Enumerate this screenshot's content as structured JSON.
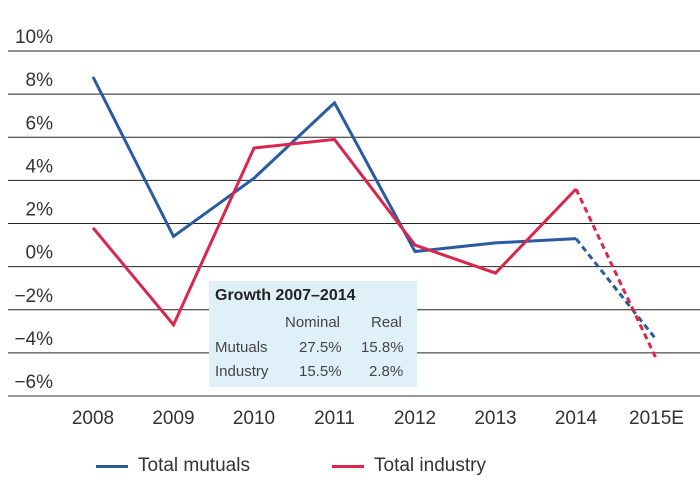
{
  "chart_data": {
    "type": "line",
    "title": "",
    "xlabel": "",
    "ylabel": "",
    "categories": [
      "2008",
      "2009",
      "2010",
      "2011",
      "2012",
      "2013",
      "2014",
      "2015E"
    ],
    "yticks": [
      "10%",
      "8%",
      "6%",
      "4%",
      "2%",
      "0%",
      "−2%",
      "−4%",
      "−6%"
    ],
    "ytick_values": [
      10,
      8,
      6,
      4,
      2,
      0,
      -2,
      -4,
      -6
    ],
    "ylim": [
      -6,
      10
    ],
    "grid": true,
    "legend_position": "bottom",
    "estimate_from_index": 6,
    "series": [
      {
        "name": "Total mutuals",
        "color": "#2a5aa0",
        "values": [
          8.8,
          1.4,
          4.1,
          7.6,
          0.7,
          1.1,
          1.3,
          -3.4
        ]
      },
      {
        "name": "Total industry",
        "color": "#d9264a",
        "values": [
          1.8,
          -2.7,
          5.5,
          5.9,
          1.0,
          -0.3,
          3.6,
          -4.3
        ]
      }
    ],
    "annotation": {
      "title": "Growth 2007–2014",
      "columns": [
        "Nominal",
        "Real"
      ],
      "rows": [
        {
          "label": "Mutuals",
          "nominal": "27.5%",
          "real": "15.8%"
        },
        {
          "label": "Industry",
          "nominal": "15.5%",
          "real": "2.8%"
        }
      ]
    }
  }
}
